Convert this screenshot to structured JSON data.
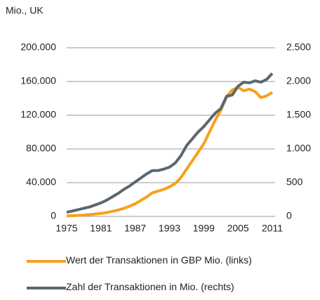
{
  "chart_data": {
    "type": "line",
    "title": "Mio., UK",
    "x": [
      1975,
      1976,
      1977,
      1978,
      1979,
      1980,
      1981,
      1982,
      1983,
      1984,
      1985,
      1986,
      1987,
      1988,
      1989,
      1990,
      1991,
      1992,
      1993,
      1994,
      1995,
      1996,
      1997,
      1998,
      1999,
      2000,
      2001,
      2002,
      2003,
      2004,
      2005,
      2006,
      2007,
      2008,
      2009,
      2010,
      2011
    ],
    "series": [
      {
        "name": "Wert der Transaktionen in GBP Mio. (links)",
        "color": "#f7a11a",
        "values": [
          500,
          800,
          1200,
          1600,
          2200,
          2800,
          3500,
          4500,
          6000,
          7500,
          9500,
          12000,
          15000,
          19000,
          23000,
          28000,
          30000,
          32000,
          35000,
          39000,
          46000,
          56000,
          66000,
          76000,
          86000,
          100000,
          114000,
          126000,
          142000,
          150000,
          153000,
          149000,
          151000,
          148000,
          141000,
          143000,
          147000
        ]
      },
      {
        "name": "Zahl der Transaktionen in Mio. (rechts)",
        "color": "#5b6770",
        "axis": "y2",
        "values": [
          60,
          80,
          100,
          120,
          140,
          170,
          200,
          240,
          290,
          340,
          400,
          450,
          510,
          570,
          630,
          680,
          680,
          700,
          730,
          790,
          900,
          1050,
          1150,
          1250,
          1330,
          1430,
          1530,
          1600,
          1780,
          1800,
          1930,
          1990,
          1980,
          2010,
          1990,
          2030,
          2120
        ]
      }
    ],
    "xlim": [
      1975,
      2011
    ],
    "xticks": [
      1975,
      1981,
      1987,
      1993,
      1999,
      2005,
      2011
    ],
    "ylim": [
      0,
      200000
    ],
    "yticks": [
      0,
      {
        "value": 40000,
        "label": "40.000"
      },
      {
        "value": 80000,
        "label": "80.000"
      },
      {
        "value": 120000,
        "label": "120.000"
      },
      {
        "value": 160000,
        "label": "160.000"
      },
      {
        "value": 200000,
        "label": "200.000"
      }
    ],
    "y2lim": [
      0,
      2500
    ],
    "y2ticks": [
      0,
      500,
      {
        "value": 1000,
        "label": "1.000"
      },
      {
        "value": 1500,
        "label": "1.500"
      },
      {
        "value": 2000,
        "label": "2.000"
      },
      {
        "value": 2500,
        "label": "2.500"
      }
    ],
    "grid": true
  }
}
